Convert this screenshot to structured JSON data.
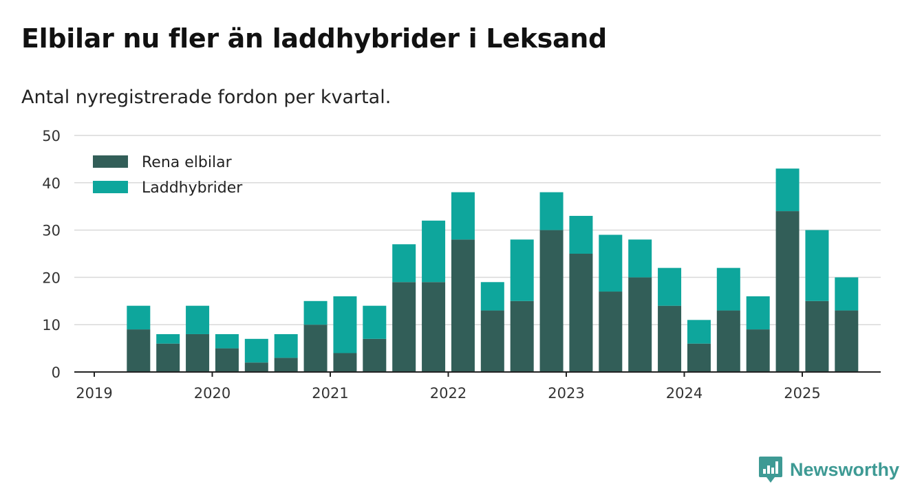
{
  "title": "Elbilar nu fler än laddhybrider i Leksand",
  "subtitle": "Antal nyregistrerade fordon per kvartal.",
  "brand": {
    "name": "Newsworthy",
    "icon": "newsworthy-logo-icon",
    "color": "#3e9a94"
  },
  "chart_data": {
    "type": "bar",
    "stacked": true,
    "x_start": "2019-Q2",
    "categories": [
      "2019 Q2",
      "2019 Q3",
      "2019 Q4",
      "2020 Q1",
      "2020 Q2",
      "2020 Q3",
      "2020 Q4",
      "2021 Q1",
      "2021 Q2",
      "2021 Q3",
      "2021 Q4",
      "2022 Q1",
      "2022 Q2",
      "2022 Q3",
      "2022 Q4",
      "2023 Q1",
      "2023 Q2",
      "2023 Q3",
      "2023 Q4",
      "2024 Q1",
      "2024 Q2",
      "2024 Q3",
      "2024 Q4",
      "2025 Q1",
      "2025 Q2"
    ],
    "series": [
      {
        "name": "Rena elbilar",
        "color": "#325e58",
        "values": [
          9,
          6,
          8,
          5,
          2,
          3,
          10,
          4,
          7,
          19,
          19,
          28,
          13,
          15,
          30,
          25,
          17,
          20,
          14,
          6,
          13,
          9,
          34,
          15,
          13
        ]
      },
      {
        "name": "Laddhybrider",
        "color": "#0ea69c",
        "values": [
          5,
          2,
          6,
          3,
          5,
          5,
          5,
          12,
          7,
          8,
          13,
          10,
          6,
          13,
          8,
          8,
          12,
          8,
          8,
          5,
          9,
          7,
          9,
          15,
          7
        ]
      }
    ],
    "x_tick_labels": [
      "2019",
      "2020",
      "2021",
      "2022",
      "2023",
      "2024",
      "2025"
    ],
    "y_ticks": [
      0,
      10,
      20,
      30,
      40,
      50
    ],
    "ylim": [
      0,
      50
    ],
    "grid": true,
    "legend_position": "top-left"
  }
}
